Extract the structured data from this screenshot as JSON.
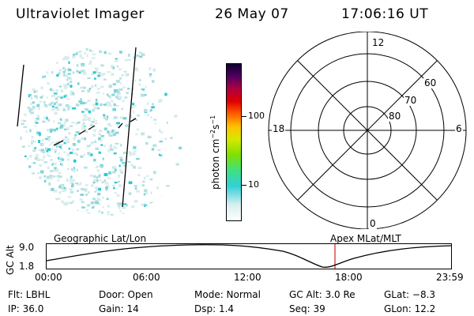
{
  "header": {
    "instrument": "Ultraviolet Imager",
    "date": "26 May 07",
    "time": "17:06:16 UT"
  },
  "colorbar": {
    "unit_prefix": "photon cm",
    "unit_exp1": "−2",
    "unit_mid": "s",
    "unit_exp2": "−1",
    "ticks": [
      "100",
      "10"
    ],
    "scale": "log"
  },
  "polar_plot": {
    "mlt_labels": {
      "top": "12",
      "left": "18",
      "right": "6",
      "bottom": "0"
    },
    "lat_labels": [
      "60",
      "70",
      "80"
    ]
  },
  "timeline": {
    "left_label": "Geographic Lat/Lon",
    "right_label": "Apex  MLat/MLT",
    "axis_label": "GC Alt",
    "ymax": "9.0",
    "ymin": "1.8",
    "ticks": [
      "00:00",
      "06:00",
      "12:00",
      "18:00",
      "23:59"
    ],
    "marker_color": "#cc2222",
    "line_color": "#000000"
  },
  "info": {
    "row1": [
      "Flt: LBHL",
      "Door: Open",
      "Mode: Normal",
      "GC Alt: 3.0 Re",
      "GLat:  −8.3"
    ],
    "row2": [
      "IP: 36.0",
      "Gain: 14",
      "Dsp:    1.4",
      "Seq: 39",
      "GLon:  12.2"
    ]
  }
}
